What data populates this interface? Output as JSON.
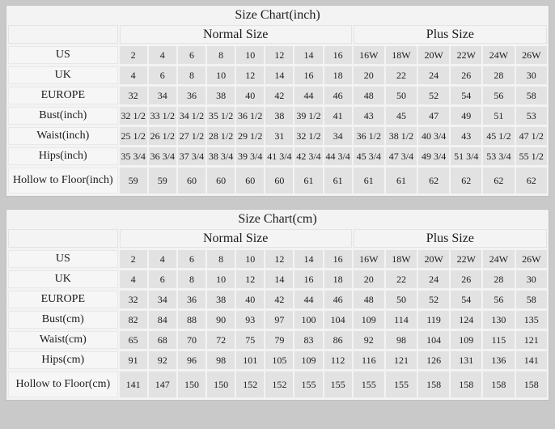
{
  "colors": {
    "page_background": "#c9c9c9",
    "table_background": "#f3f3f3",
    "label_cell_background": "#f6f6f6",
    "data_cell_background": "#e2e2e2",
    "text": "#1c1c1c"
  },
  "tables": [
    {
      "title": "Size Chart(inch)",
      "normal_header": "Normal Size",
      "plus_header": "Plus Size",
      "rows": [
        {
          "label": "US",
          "normal": [
            "2",
            "4",
            "6",
            "8",
            "10",
            "12",
            "14",
            "16"
          ],
          "plus": [
            "16W",
            "18W",
            "20W",
            "22W",
            "24W",
            "26W"
          ]
        },
        {
          "label": "UK",
          "normal": [
            "4",
            "6",
            "8",
            "10",
            "12",
            "14",
            "16",
            "18"
          ],
          "plus": [
            "20",
            "22",
            "24",
            "26",
            "28",
            "30"
          ]
        },
        {
          "label": "EUROPE",
          "normal": [
            "32",
            "34",
            "36",
            "38",
            "40",
            "42",
            "44",
            "46"
          ],
          "plus": [
            "48",
            "50",
            "52",
            "54",
            "56",
            "58"
          ]
        },
        {
          "label": "Bust(inch)",
          "normal": [
            "32 1/2",
            "33 1/2",
            "34 1/2",
            "35 1/2",
            "36 1/2",
            "38",
            "39 1/2",
            "41"
          ],
          "plus": [
            "43",
            "45",
            "47",
            "49",
            "51",
            "53"
          ]
        },
        {
          "label": "Waist(inch)",
          "normal": [
            "25 1/2",
            "26 1/2",
            "27 1/2",
            "28 1/2",
            "29 1/2",
            "31",
            "32 1/2",
            "34"
          ],
          "plus": [
            "36 1/2",
            "38 1/2",
            "40 3/4",
            "43",
            "45 1/2",
            "47 1/2"
          ]
        },
        {
          "label": "Hips(inch)",
          "normal": [
            "35 3/4",
            "36 3/4",
            "37 3/4",
            "38 3/4",
            "39 3/4",
            "41 3/4",
            "42 3/4",
            "44 3/4"
          ],
          "plus": [
            "45 3/4",
            "47 3/4",
            "49 3/4",
            "51 3/4",
            "53 3/4",
            "55 1/2"
          ]
        },
        {
          "label": "Hollow to Floor(inch)",
          "normal": [
            "59",
            "59",
            "60",
            "60",
            "60",
            "60",
            "61",
            "61"
          ],
          "plus": [
            "61",
            "61",
            "62",
            "62",
            "62",
            "62"
          ]
        }
      ]
    },
    {
      "title": "Size Chart(cm)",
      "normal_header": "Normal Size",
      "plus_header": "Plus Size",
      "rows": [
        {
          "label": "US",
          "normal": [
            "2",
            "4",
            "6",
            "8",
            "10",
            "12",
            "14",
            "16"
          ],
          "plus": [
            "16W",
            "18W",
            "20W",
            "22W",
            "24W",
            "26W"
          ]
        },
        {
          "label": "UK",
          "normal": [
            "4",
            "6",
            "8",
            "10",
            "12",
            "14",
            "16",
            "18"
          ],
          "plus": [
            "20",
            "22",
            "24",
            "26",
            "28",
            "30"
          ]
        },
        {
          "label": "EUROPE",
          "normal": [
            "32",
            "34",
            "36",
            "38",
            "40",
            "42",
            "44",
            "46"
          ],
          "plus": [
            "48",
            "50",
            "52",
            "54",
            "56",
            "58"
          ]
        },
        {
          "label": "Bust(cm)",
          "normal": [
            "82",
            "84",
            "88",
            "90",
            "93",
            "97",
            "100",
            "104"
          ],
          "plus": [
            "109",
            "114",
            "119",
            "124",
            "130",
            "135"
          ]
        },
        {
          "label": "Waist(cm)",
          "normal": [
            "65",
            "68",
            "70",
            "72",
            "75",
            "79",
            "83",
            "86"
          ],
          "plus": [
            "92",
            "98",
            "104",
            "109",
            "115",
            "121"
          ]
        },
        {
          "label": "Hips(cm)",
          "normal": [
            "91",
            "92",
            "96",
            "98",
            "101",
            "105",
            "109",
            "112"
          ],
          "plus": [
            "116",
            "121",
            "126",
            "131",
            "136",
            "141"
          ]
        },
        {
          "label": "Hollow to Floor(cm)",
          "normal": [
            "141",
            "147",
            "150",
            "150",
            "152",
            "152",
            "155",
            "155"
          ],
          "plus": [
            "155",
            "155",
            "158",
            "158",
            "158",
            "158"
          ]
        }
      ]
    }
  ]
}
